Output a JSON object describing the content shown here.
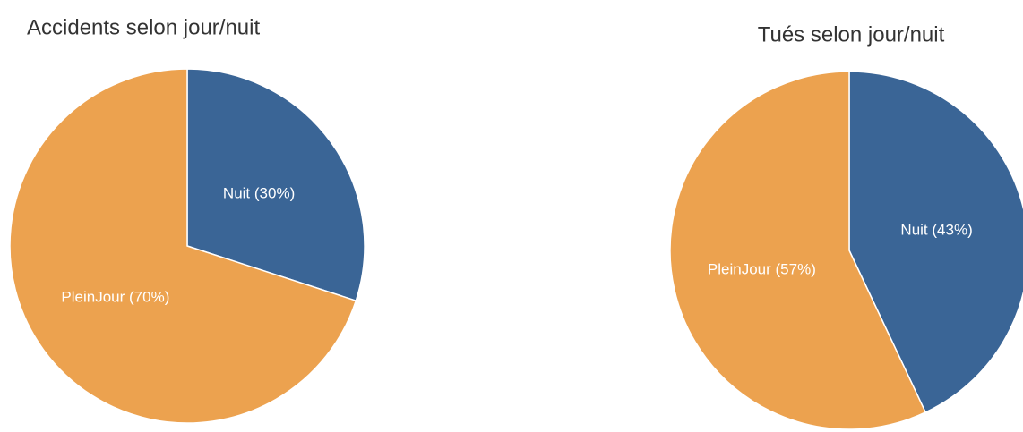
{
  "chart_data": [
    {
      "type": "pie",
      "title": "Accidents selon jour/nuit",
      "categories": [
        "Nuit",
        "PleinJour"
      ],
      "values": [
        30,
        70
      ],
      "value_labels": [
        "Nuit (30%)",
        "PleinJour (70%)"
      ],
      "colors": [
        "#3a6596",
        "#eca24f"
      ]
    },
    {
      "type": "pie",
      "title": "Tués selon jour/nuit",
      "categories": [
        "Nuit",
        "PleinJour"
      ],
      "values": [
        43,
        57
      ],
      "value_labels": [
        "Nuit (43%)",
        "PleinJour (57%)"
      ],
      "colors": [
        "#3a6596",
        "#eca24f"
      ]
    }
  ]
}
